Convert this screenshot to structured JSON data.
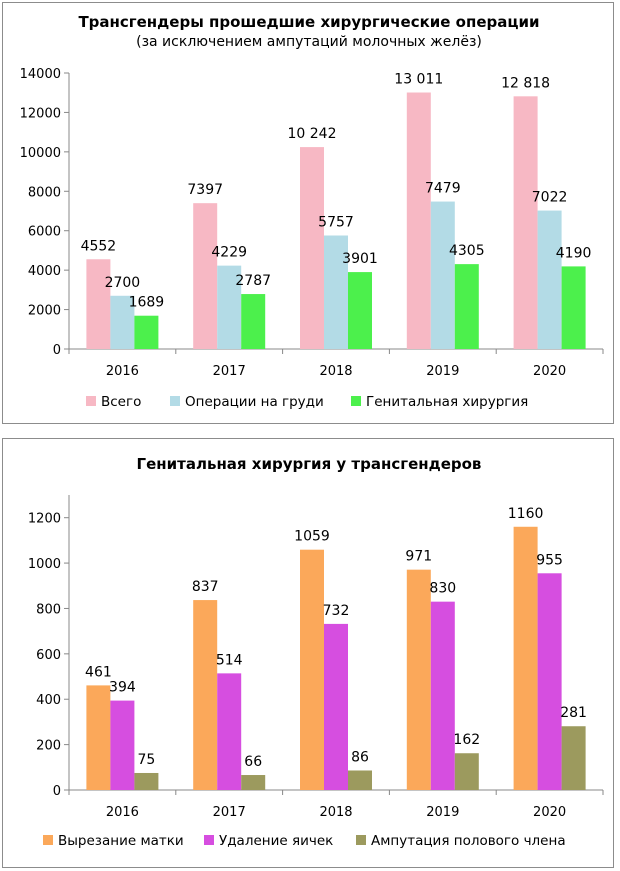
{
  "chart_data": [
    {
      "type": "bar",
      "title": "Трансгендеры прошедшие хирургические операции",
      "subtitle": "(за исключением ампутаций молочных желёз)",
      "categories": [
        "2016",
        "2017",
        "2018",
        "2019",
        "2020"
      ],
      "y_ticks": [
        "0",
        "2000",
        "4000",
        "6000",
        "8000",
        "10000",
        "12000",
        "14000"
      ],
      "ylim": [
        0,
        14000
      ],
      "grid": false,
      "legend_position": "bottom",
      "series": [
        {
          "name": "Всего",
          "color": "#f7b8c4",
          "values": [
            4552,
            7397,
            10242,
            13011,
            12818
          ],
          "labels": [
            "4552",
            "7397",
            "10 242",
            "13 011",
            "12 818"
          ]
        },
        {
          "name": "Операции на груди",
          "color": "#b3dbe6",
          "values": [
            2700,
            4229,
            5757,
            7479,
            7022
          ],
          "labels": [
            "2700",
            "4229",
            "5757",
            "7479",
            "7022"
          ]
        },
        {
          "name": "Генитальная хирургия",
          "color": "#4cf04c",
          "values": [
            1689,
            2787,
            3901,
            4305,
            4190
          ],
          "labels": [
            "1689",
            "2787",
            "3901",
            "4305",
            "4190"
          ]
        }
      ]
    },
    {
      "type": "bar",
      "title": "Генитальная хирургия у трансгендеров",
      "subtitle": "",
      "categories": [
        "2016",
        "2017",
        "2018",
        "2019",
        "2020"
      ],
      "y_ticks": [
        "0",
        "200",
        "400",
        "600",
        "800",
        "1000",
        "1200"
      ],
      "ylim": [
        0,
        1300
      ],
      "grid": false,
      "legend_position": "bottom",
      "series": [
        {
          "name": "Вырезание матки",
          "color": "#fba85a",
          "values": [
            461,
            837,
            1059,
            971,
            1160
          ],
          "labels": [
            "461",
            "837",
            "1059",
            "971",
            "1160"
          ]
        },
        {
          "name": "Удаление яичек",
          "color": "#d64ee0",
          "values": [
            394,
            514,
            732,
            830,
            955
          ],
          "labels": [
            "394",
            "514",
            "732",
            "830",
            "955"
          ]
        },
        {
          "name": "Ампутация полового члена",
          "color": "#9c9a5e",
          "values": [
            75,
            66,
            86,
            162,
            281
          ],
          "labels": [
            "75",
            "66",
            "86",
            "162",
            "281"
          ]
        }
      ]
    }
  ]
}
